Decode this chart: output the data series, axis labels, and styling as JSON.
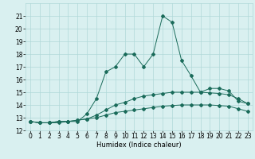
{
  "xlabel": "Humidex (Indice chaleur)",
  "x_values": [
    0,
    1,
    2,
    3,
    4,
    5,
    6,
    7,
    8,
    9,
    10,
    11,
    12,
    13,
    14,
    15,
    16,
    17,
    18,
    19,
    20,
    21,
    22,
    23
  ],
  "series1": [
    12.7,
    12.6,
    12.6,
    12.6,
    12.7,
    12.7,
    13.3,
    14.5,
    16.6,
    17.0,
    18.0,
    18.0,
    17.0,
    18.0,
    21.0,
    20.5,
    17.5,
    16.3,
    15.0,
    15.3,
    15.3,
    15.1,
    14.3,
    14.1
  ],
  "series2": [
    12.7,
    12.6,
    12.6,
    12.7,
    12.7,
    12.8,
    12.9,
    13.2,
    13.6,
    14.0,
    14.2,
    14.5,
    14.7,
    14.8,
    14.9,
    15.0,
    15.0,
    15.0,
    15.0,
    14.95,
    14.9,
    14.8,
    14.5,
    14.1
  ],
  "series3": [
    12.7,
    12.6,
    12.6,
    12.7,
    12.7,
    12.8,
    12.9,
    13.0,
    13.2,
    13.4,
    13.5,
    13.6,
    13.7,
    13.8,
    13.9,
    13.95,
    14.0,
    14.0,
    14.0,
    14.0,
    13.95,
    13.9,
    13.7,
    13.5
  ],
  "line_color": "#1a6b5a",
  "bg_color": "#d9f0f0",
  "grid_color": "#b0d8d8",
  "ylim_min": 12,
  "ylim_max": 22,
  "yticks": [
    12,
    13,
    14,
    15,
    16,
    17,
    18,
    19,
    20,
    21
  ],
  "marker": "D",
  "marker_size": 2,
  "label_fontsize": 6,
  "tick_fontsize": 5.5
}
